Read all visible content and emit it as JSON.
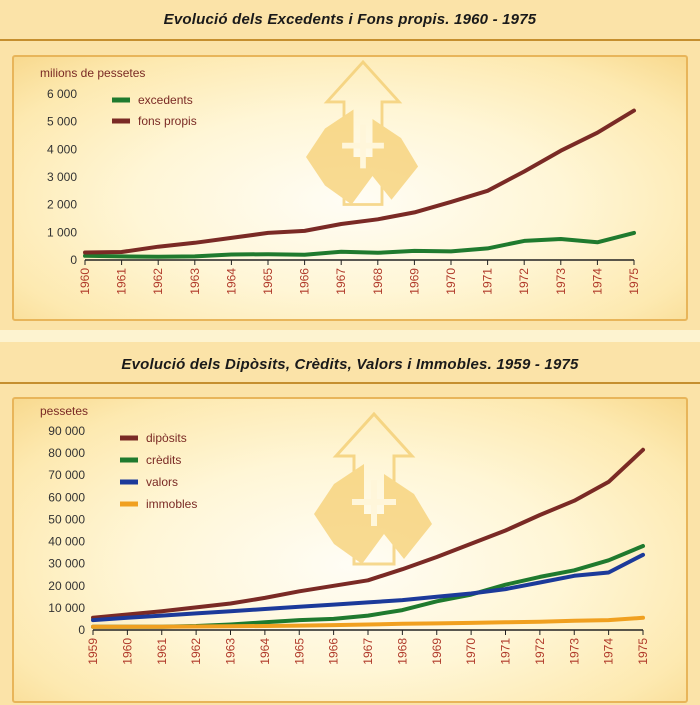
{
  "chart_data": [
    {
      "type": "line",
      "title": "Evolució dels Excedents i Fons propis. 1960 - 1975",
      "ylabel": "milions de pessetes",
      "xlabel": "",
      "x": [
        "1960",
        "1961",
        "1962",
        "1963",
        "1964",
        "1965",
        "1966",
        "1967",
        "1968",
        "1969",
        "1970",
        "1971",
        "1972",
        "1973",
        "1974",
        "1975"
      ],
      "ylim": [
        0,
        6000
      ],
      "yticks": [
        0,
        1000,
        2000,
        3000,
        4000,
        5000,
        6000
      ],
      "ytick_labels": [
        "0",
        "1 000",
        "2 000",
        "3 000",
        "4 000",
        "5 000",
        "6 000"
      ],
      "legend_position": "top-left",
      "grid": false,
      "series": [
        {
          "name": "excedents",
          "color": "#1f7a2e",
          "values": [
            150,
            130,
            120,
            130,
            200,
            210,
            190,
            300,
            260,
            330,
            310,
            420,
            690,
            760,
            640,
            980
          ]
        },
        {
          "name": "fons propis",
          "color": "#7a2a25",
          "values": [
            270,
            290,
            480,
            620,
            800,
            980,
            1050,
            1300,
            1470,
            1720,
            2100,
            2500,
            3200,
            3950,
            4600,
            5400
          ]
        }
      ]
    },
    {
      "type": "line",
      "title": "Evolució dels Dipòsits, Crèdits, Valors i Immobles. 1959 - 1975",
      "ylabel": "pessetes",
      "xlabel": "",
      "x": [
        "1959",
        "1960",
        "1961",
        "1962",
        "1963",
        "1964",
        "1965",
        "1966",
        "1967",
        "1968",
        "1969",
        "1970",
        "1971",
        "1972",
        "1973",
        "1974",
        "1975"
      ],
      "ylim": [
        0,
        90000
      ],
      "yticks": [
        0,
        10000,
        20000,
        30000,
        40000,
        50000,
        60000,
        70000,
        80000,
        90000
      ],
      "ytick_labels": [
        "0",
        "10 000",
        "20 000",
        "30 000",
        "40 000",
        "50 000",
        "60 000",
        "70 000",
        "80 000",
        "90 000"
      ],
      "legend_position": "top-left",
      "grid": false,
      "series": [
        {
          "name": "dipòsits",
          "color": "#7a2a25",
          "values": [
            5500,
            7000,
            8500,
            10200,
            12000,
            14500,
            17500,
            20000,
            22500,
            27500,
            33000,
            39000,
            45000,
            52000,
            58500,
            67000,
            81500
          ]
        },
        {
          "name": "crèdits",
          "color": "#1f7a2e",
          "values": [
            1500,
            1500,
            1500,
            1800,
            2500,
            3500,
            4500,
            5000,
            6500,
            9000,
            13000,
            16000,
            20500,
            24000,
            27000,
            31500,
            38000
          ]
        },
        {
          "name": "valors",
          "color": "#1c3a9a",
          "values": [
            4500,
            5500,
            6500,
            7500,
            8500,
            9500,
            10500,
            11500,
            12500,
            13500,
            15000,
            16500,
            18500,
            21500,
            24500,
            26000,
            34000
          ]
        },
        {
          "name": "immobles",
          "color": "#f0a020",
          "values": [
            1500,
            1500,
            1500,
            1600,
            1700,
            1800,
            2000,
            2200,
            2500,
            2800,
            3000,
            3200,
            3500,
            3700,
            4200,
            4500,
            5500
          ]
        }
      ]
    }
  ]
}
